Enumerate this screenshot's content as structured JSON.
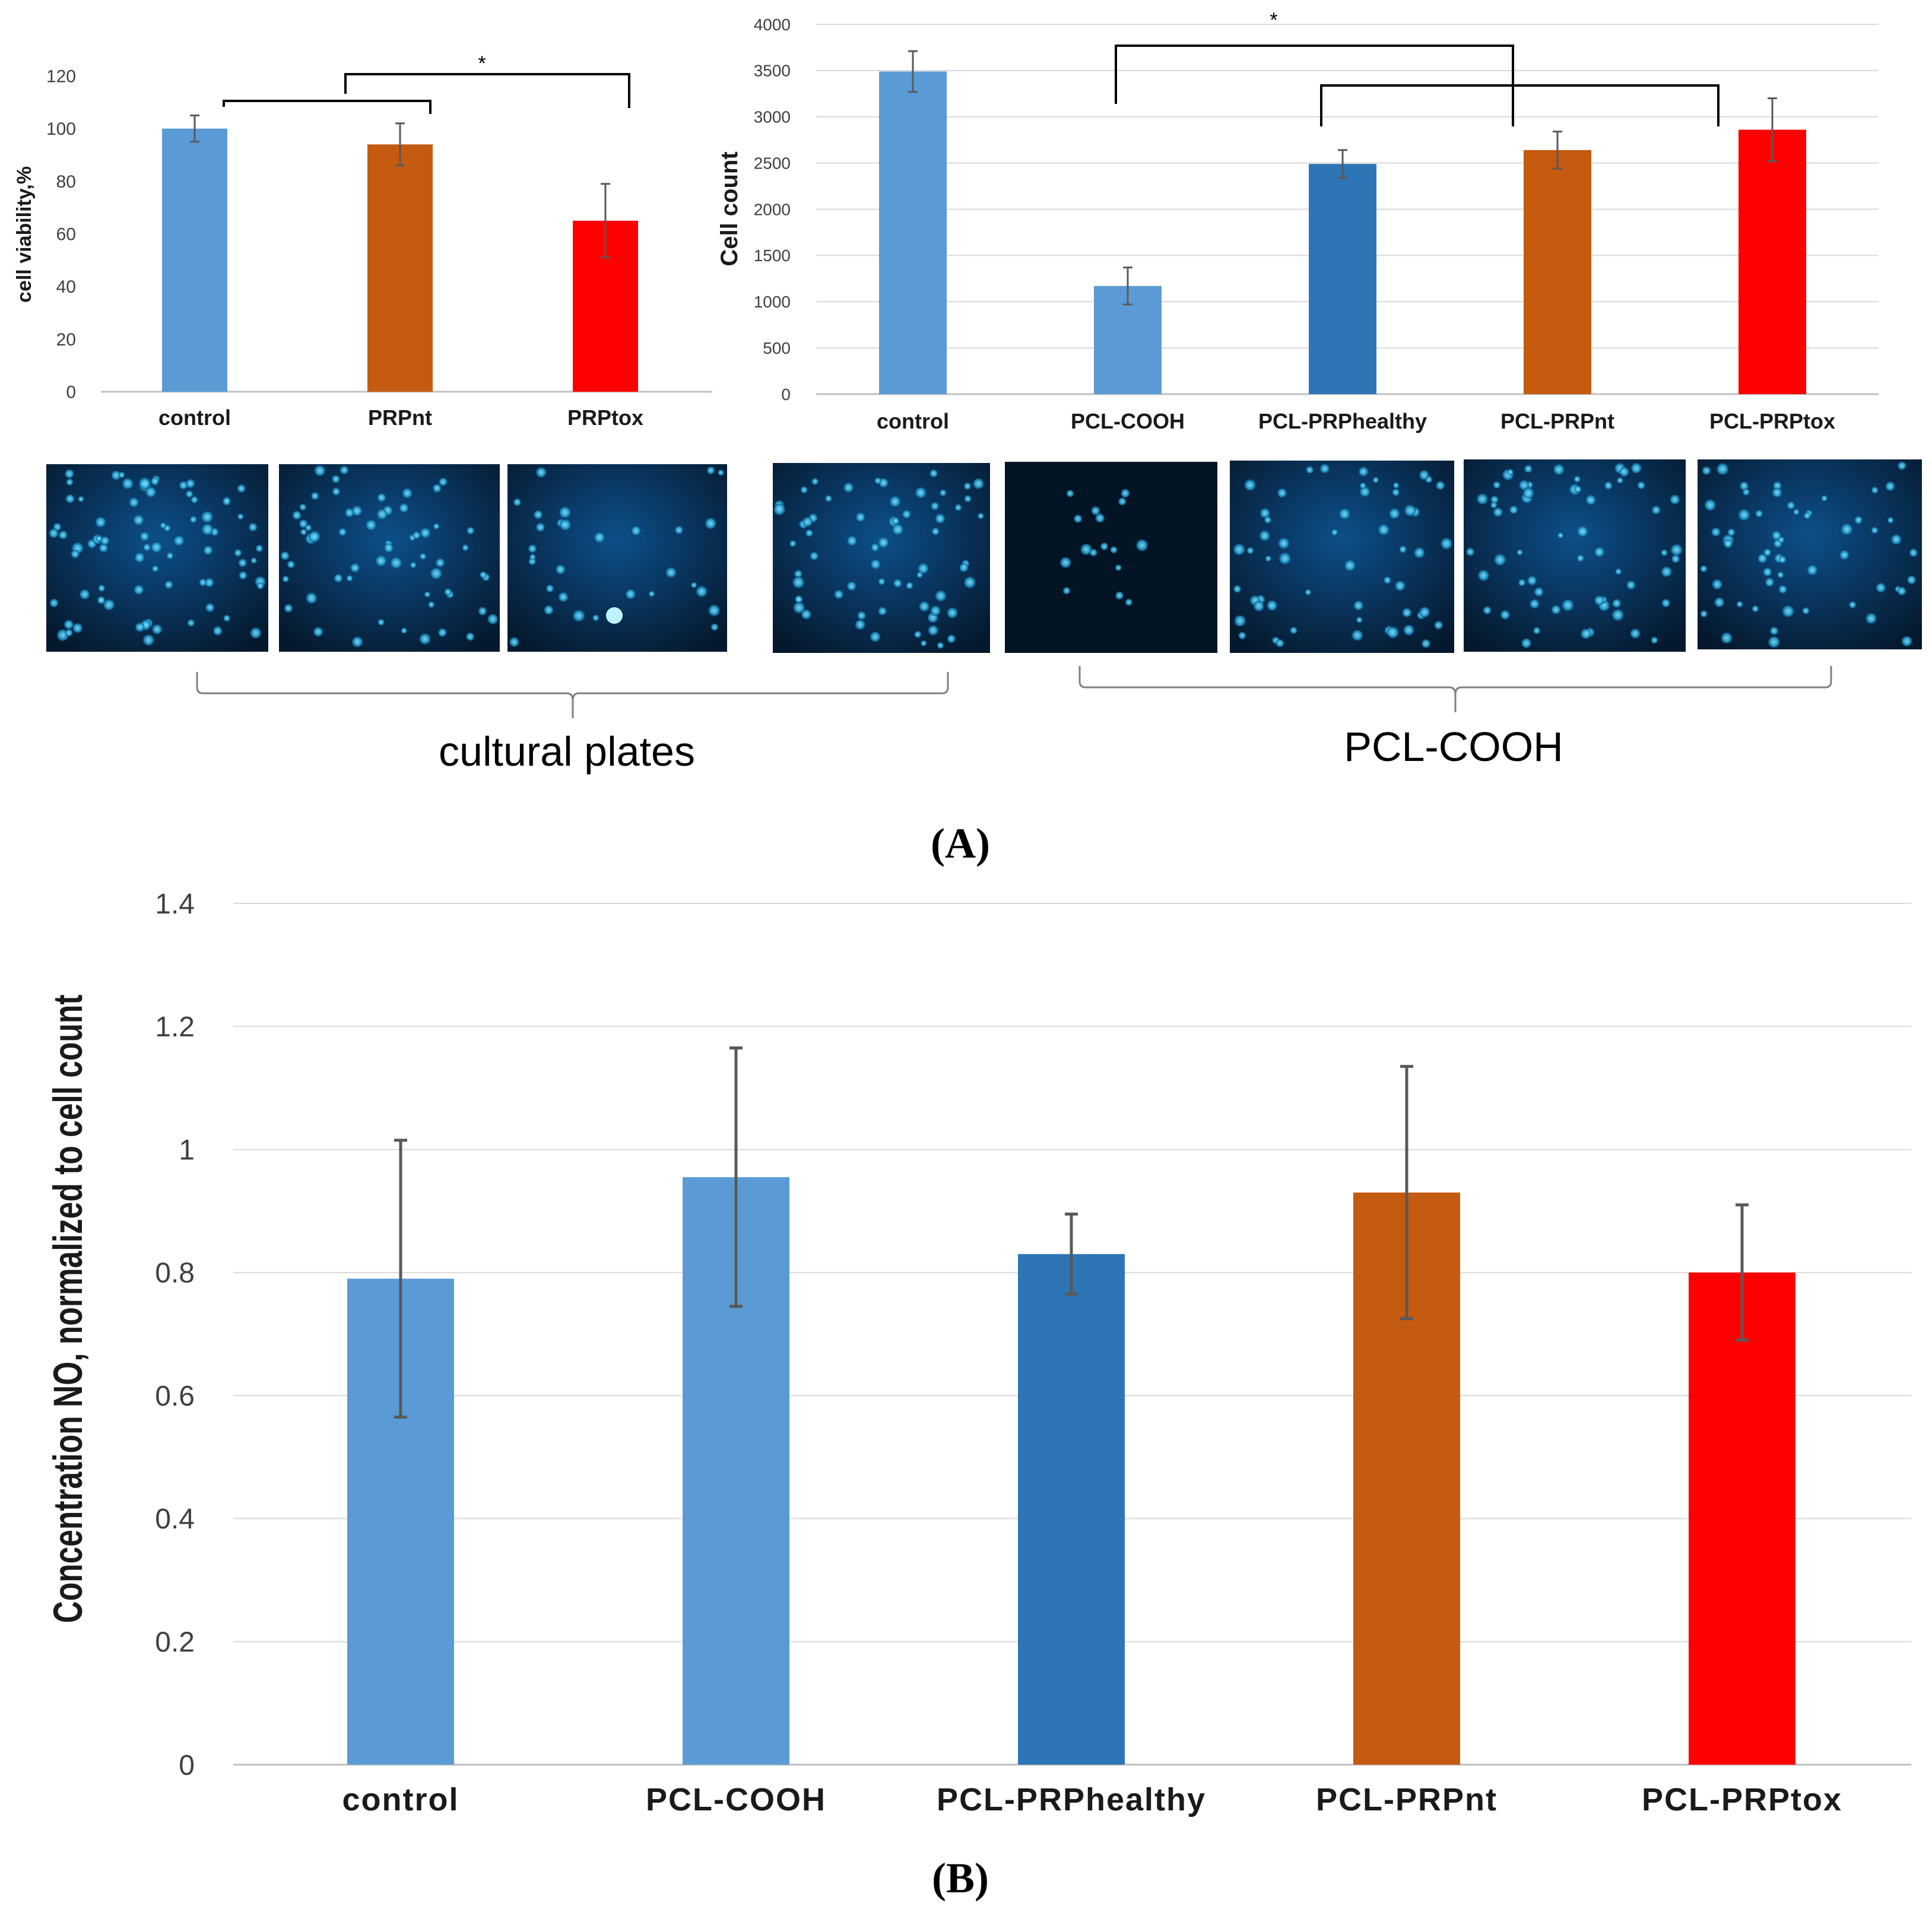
{
  "chart_data": [
    {
      "id": "viability",
      "type": "bar",
      "title": "",
      "xlabel": "",
      "ylabel": "cell viability,%",
      "ylim": [
        0,
        120
      ],
      "yticks": [
        0,
        20,
        40,
        60,
        80,
        100,
        120
      ],
      "grid": false,
      "categories": [
        "control",
        "PRPnt",
        "PRPtox"
      ],
      "values": [
        100,
        94,
        65
      ],
      "errors": [
        5,
        8,
        14
      ],
      "colors": [
        "#5b9bd5",
        "#c55a11",
        "#ff0000"
      ],
      "significance": "*"
    },
    {
      "id": "cellcount",
      "type": "bar",
      "title": "",
      "xlabel": "",
      "ylabel": "Cell count",
      "ylim": [
        0,
        4000
      ],
      "yticks": [
        0,
        500,
        1000,
        1500,
        2000,
        2500,
        3000,
        3500,
        4000
      ],
      "grid": true,
      "categories": [
        "control",
        "PCL-COOH",
        "PCL-PRPhealthy",
        "PCL-PRPnt",
        "PCL-PRPtox"
      ],
      "values": [
        3490,
        1170,
        2490,
        2640,
        2860
      ],
      "errors": [
        220,
        200,
        150,
        200,
        340
      ],
      "colors": [
        "#5b9bd5",
        "#5b9bd5",
        "#2e75b6",
        "#c55a11",
        "#ff0000"
      ],
      "significance": "*"
    },
    {
      "id": "no_conc",
      "type": "bar",
      "title": "",
      "xlabel": "",
      "ylabel": "Concentration NO, normalized to cell count",
      "ylim": [
        0,
        1.4
      ],
      "yticks": [
        "0",
        "0.2",
        "0.4",
        "0.6",
        "0.8",
        "1",
        "1.2",
        "1.4"
      ],
      "grid": true,
      "categories": [
        "control",
        "PCL-COOH",
        "PCL-PRPhealthy",
        "PCL-PRPnt",
        "PCL-PRPtox"
      ],
      "values": [
        0.79,
        0.955,
        0.83,
        0.93,
        0.8
      ],
      "errors": [
        0.225,
        0.21,
        0.065,
        0.205,
        0.11
      ],
      "colors": [
        "#5b9bd5",
        "#5b9bd5",
        "#2e75b6",
        "#c55a11",
        "#ff0000"
      ]
    }
  ],
  "micrographs": {
    "groups": [
      "cultural plates",
      "PCL-COOH"
    ]
  },
  "panels": {
    "a": "(A)",
    "b": "(B)"
  }
}
